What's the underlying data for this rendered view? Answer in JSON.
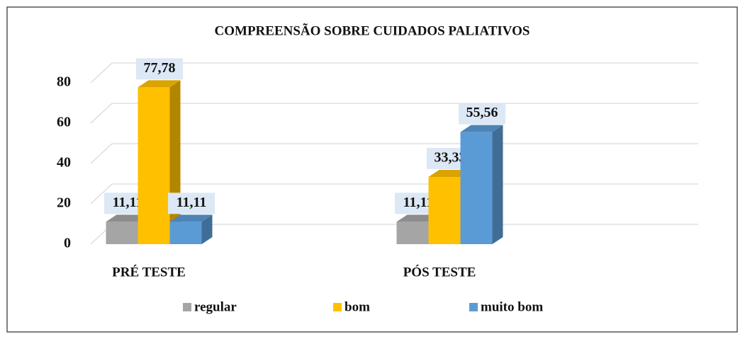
{
  "chart_data": {
    "type": "bar3d",
    "title": "COMPREENSÃO SOBRE CUIDADOS  PALIATIVOS",
    "categories": [
      "PRÉ TESTE",
      "PÓS TESTE"
    ],
    "series": [
      {
        "name": "regular",
        "color": "#a5a5a5",
        "values": [
          11.11,
          11.11
        ],
        "value_labels": [
          "11,11",
          "11,11"
        ]
      },
      {
        "name": "bom",
        "color": "#ffc000",
        "values": [
          77.78,
          33.33
        ],
        "value_labels": [
          "77,78",
          "33,33"
        ]
      },
      {
        "name": "muito bom",
        "color": "#5b9bd5",
        "values": [
          11.11,
          55.56
        ],
        "value_labels": [
          "11,11",
          "55,56"
        ]
      }
    ],
    "ylim": [
      0,
      80
    ],
    "yticks": [
      0,
      20,
      40,
      60,
      80
    ],
    "grid": true,
    "legend": "bottom"
  }
}
